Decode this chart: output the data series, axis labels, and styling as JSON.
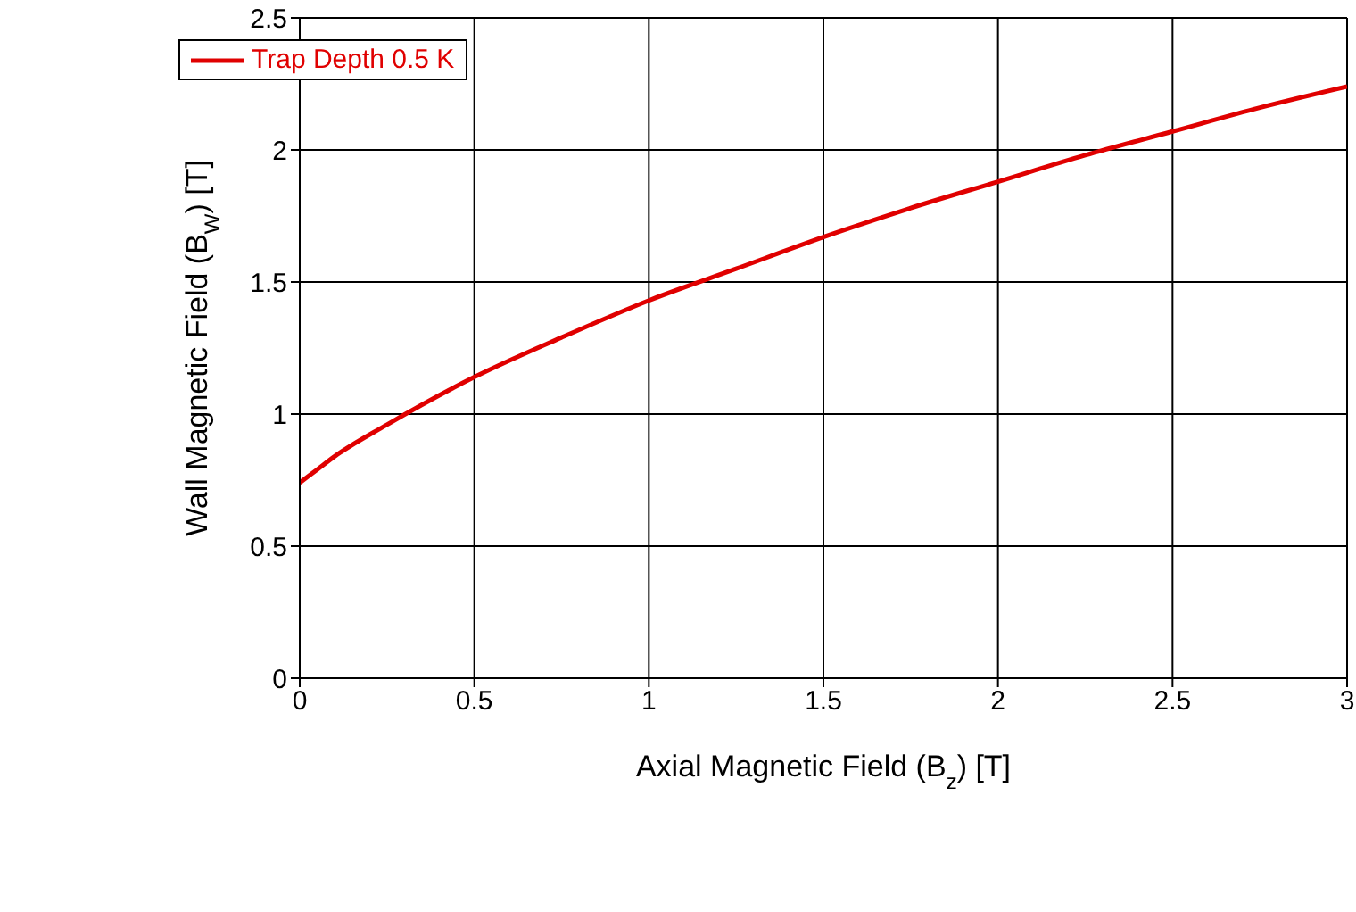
{
  "chart_data": {
    "type": "line",
    "xlabel": "Axial Magnetic Field (B$_{z}$) [T]",
    "ylabel": "Wall Magnetic Field (B$_{W}$) [T]",
    "x": [
      0,
      0.05,
      0.1,
      0.25,
      0.5,
      0.75,
      1,
      1.25,
      1.5,
      1.75,
      2,
      2.25,
      2.5,
      2.75,
      3
    ],
    "series": [
      {
        "name": "Trap Depth 0.5 K",
        "color": "#e00000",
        "values": [
          0.74,
          0.79,
          0.84,
          0.96,
          1.14,
          1.29,
          1.43,
          1.55,
          1.67,
          1.78,
          1.88,
          1.98,
          2.07,
          2.16,
          2.24
        ]
      }
    ],
    "xlim": [
      0,
      3
    ],
    "xticks": [
      0,
      0.5,
      1,
      1.5,
      2,
      2.5,
      3
    ],
    "ylim": [
      0,
      2.5
    ],
    "yticks": [
      0,
      0.5,
      1,
      1.5,
      2,
      2.5
    ],
    "grid": true,
    "legend": "top left",
    "marker": "none",
    "line_style": "solid"
  }
}
